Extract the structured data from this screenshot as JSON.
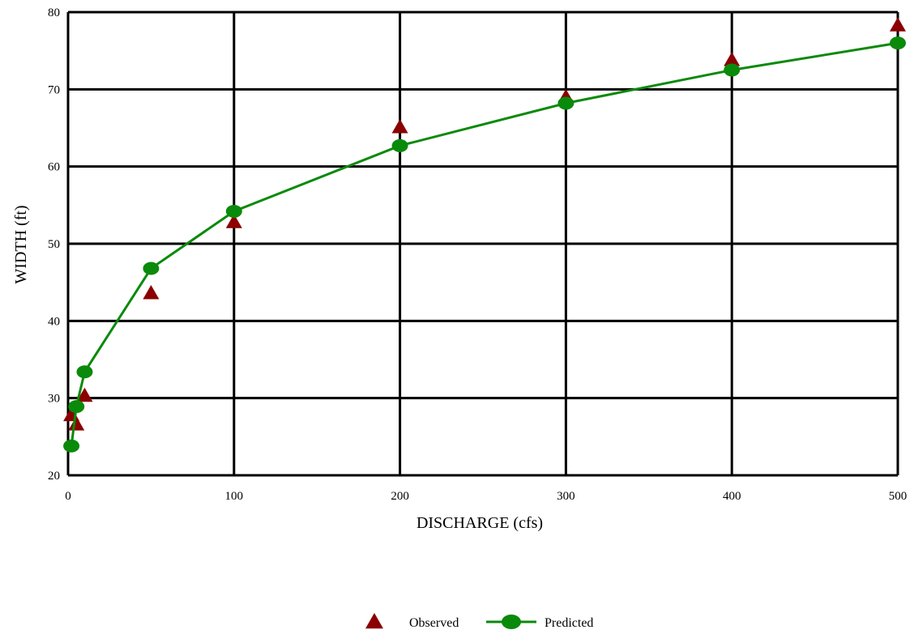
{
  "chart_data": {
    "type": "scatter",
    "title": "",
    "xlabel": "DISCHARGE (cfs)",
    "ylabel": "WIDTH (ft)",
    "xlim": [
      0,
      500
    ],
    "ylim": [
      20,
      80
    ],
    "x_ticks": [
      0,
      100,
      200,
      300,
      400,
      500
    ],
    "y_ticks": [
      20,
      30,
      40,
      50,
      60,
      70,
      80
    ],
    "grid": true,
    "legend_position": "bottom-center",
    "series": [
      {
        "name": "Observed",
        "marker": "triangle",
        "line": false,
        "color": "#8b0000",
        "x": [
          2,
          5,
          10,
          50,
          100,
          200,
          300,
          400,
          500
        ],
        "y": [
          27.8,
          26.6,
          30.3,
          43.6,
          52.8,
          65.1,
          69.0,
          73.8,
          78.3
        ]
      },
      {
        "name": "Predicted",
        "marker": "circle",
        "line": true,
        "color": "#0a8a0a",
        "x": [
          2,
          5,
          10,
          50,
          100,
          200,
          300,
          400,
          500
        ],
        "y": [
          23.8,
          28.9,
          33.4,
          46.8,
          54.2,
          62.7,
          68.2,
          72.5,
          76.0
        ]
      }
    ]
  }
}
